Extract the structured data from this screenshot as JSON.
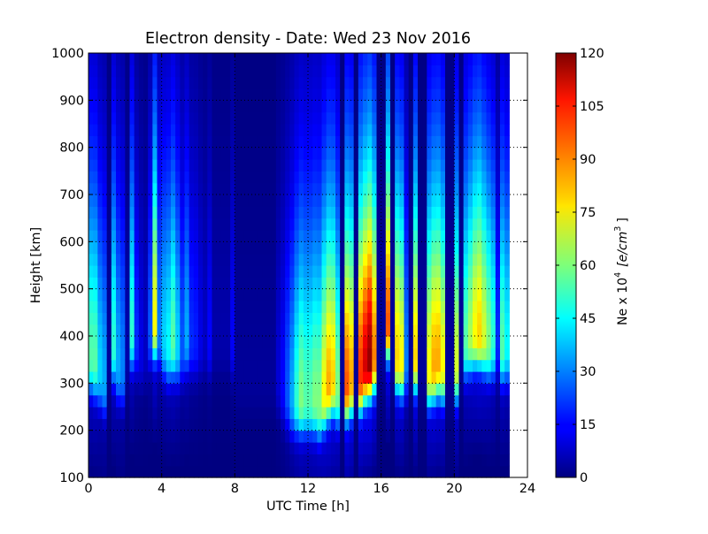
{
  "chart_data": {
    "type": "heatmap",
    "title": "Electron density - Date: Wed 23 Nov 2016",
    "xlabel": "UTC Time [h]",
    "ylabel": "Height [km]",
    "xlim": [
      0,
      24
    ],
    "ylim": [
      100,
      1000
    ],
    "xticks": [
      "0",
      "4",
      "8",
      "12",
      "16",
      "20",
      "24"
    ],
    "yticks": [
      "100",
      "200",
      "300",
      "400",
      "500",
      "600",
      "700",
      "800",
      "900",
      "1000"
    ],
    "grid": true,
    "colormap": "jet",
    "colorbar": {
      "label_main": "Ne x 10",
      "label_exp": "4",
      "label_unit": "[e/cm",
      "label_unit_exp": "3",
      "label_close": "]",
      "range": [
        0,
        120
      ],
      "ticks": [
        "0",
        "15",
        "30",
        "45",
        "60",
        "75",
        "90",
        "105",
        "120"
      ]
    },
    "time_step_h": 0.25,
    "height_step_km": 25,
    "model": "Chapman-like vertical profile per time column",
    "peak_ne": [
      55,
      55,
      40,
      35,
      3,
      50,
      35,
      30,
      5,
      50,
      20,
      12,
      8,
      25,
      75,
      30,
      40,
      45,
      55,
      40,
      25,
      35,
      20,
      18,
      12,
      8,
      15,
      5,
      5,
      5,
      5,
      14,
      3,
      3,
      3,
      3,
      3,
      3,
      3,
      3,
      3,
      10,
      15,
      25,
      35,
      50,
      60,
      55,
      55,
      60,
      60,
      75,
      85,
      80,
      60,
      3,
      95,
      85,
      3,
      100,
      110,
      118,
      90,
      3,
      3,
      95,
      3,
      80,
      75,
      30,
      3,
      80,
      3,
      3,
      75,
      85,
      85,
      75,
      3,
      3,
      70,
      3,
      55,
      65,
      75,
      80,
      70,
      60,
      50,
      20,
      55,
      45
    ],
    "peak_height_km": [
      350,
      340,
      320,
      300,
      350,
      370,
      330,
      320,
      350,
      400,
      380,
      360,
      360,
      400,
      420,
      400,
      380,
      370,
      380,
      370,
      370,
      390,
      380,
      380,
      380,
      380,
      380,
      380,
      380,
      380,
      380,
      380,
      300,
      300,
      300,
      300,
      300,
      300,
      300,
      300,
      300,
      300,
      280,
      270,
      260,
      260,
      260,
      260,
      260,
      260,
      250,
      270,
      290,
      300,
      280,
      300,
      290,
      300,
      300,
      310,
      330,
      340,
      350,
      350,
      350,
      420,
      350,
      350,
      340,
      340,
      350,
      350,
      340,
      340,
      320,
      330,
      340,
      330,
      330,
      330,
      330,
      340,
      380,
      390,
      400,
      400,
      390,
      380,
      380,
      380,
      370,
      370
    ]
  }
}
